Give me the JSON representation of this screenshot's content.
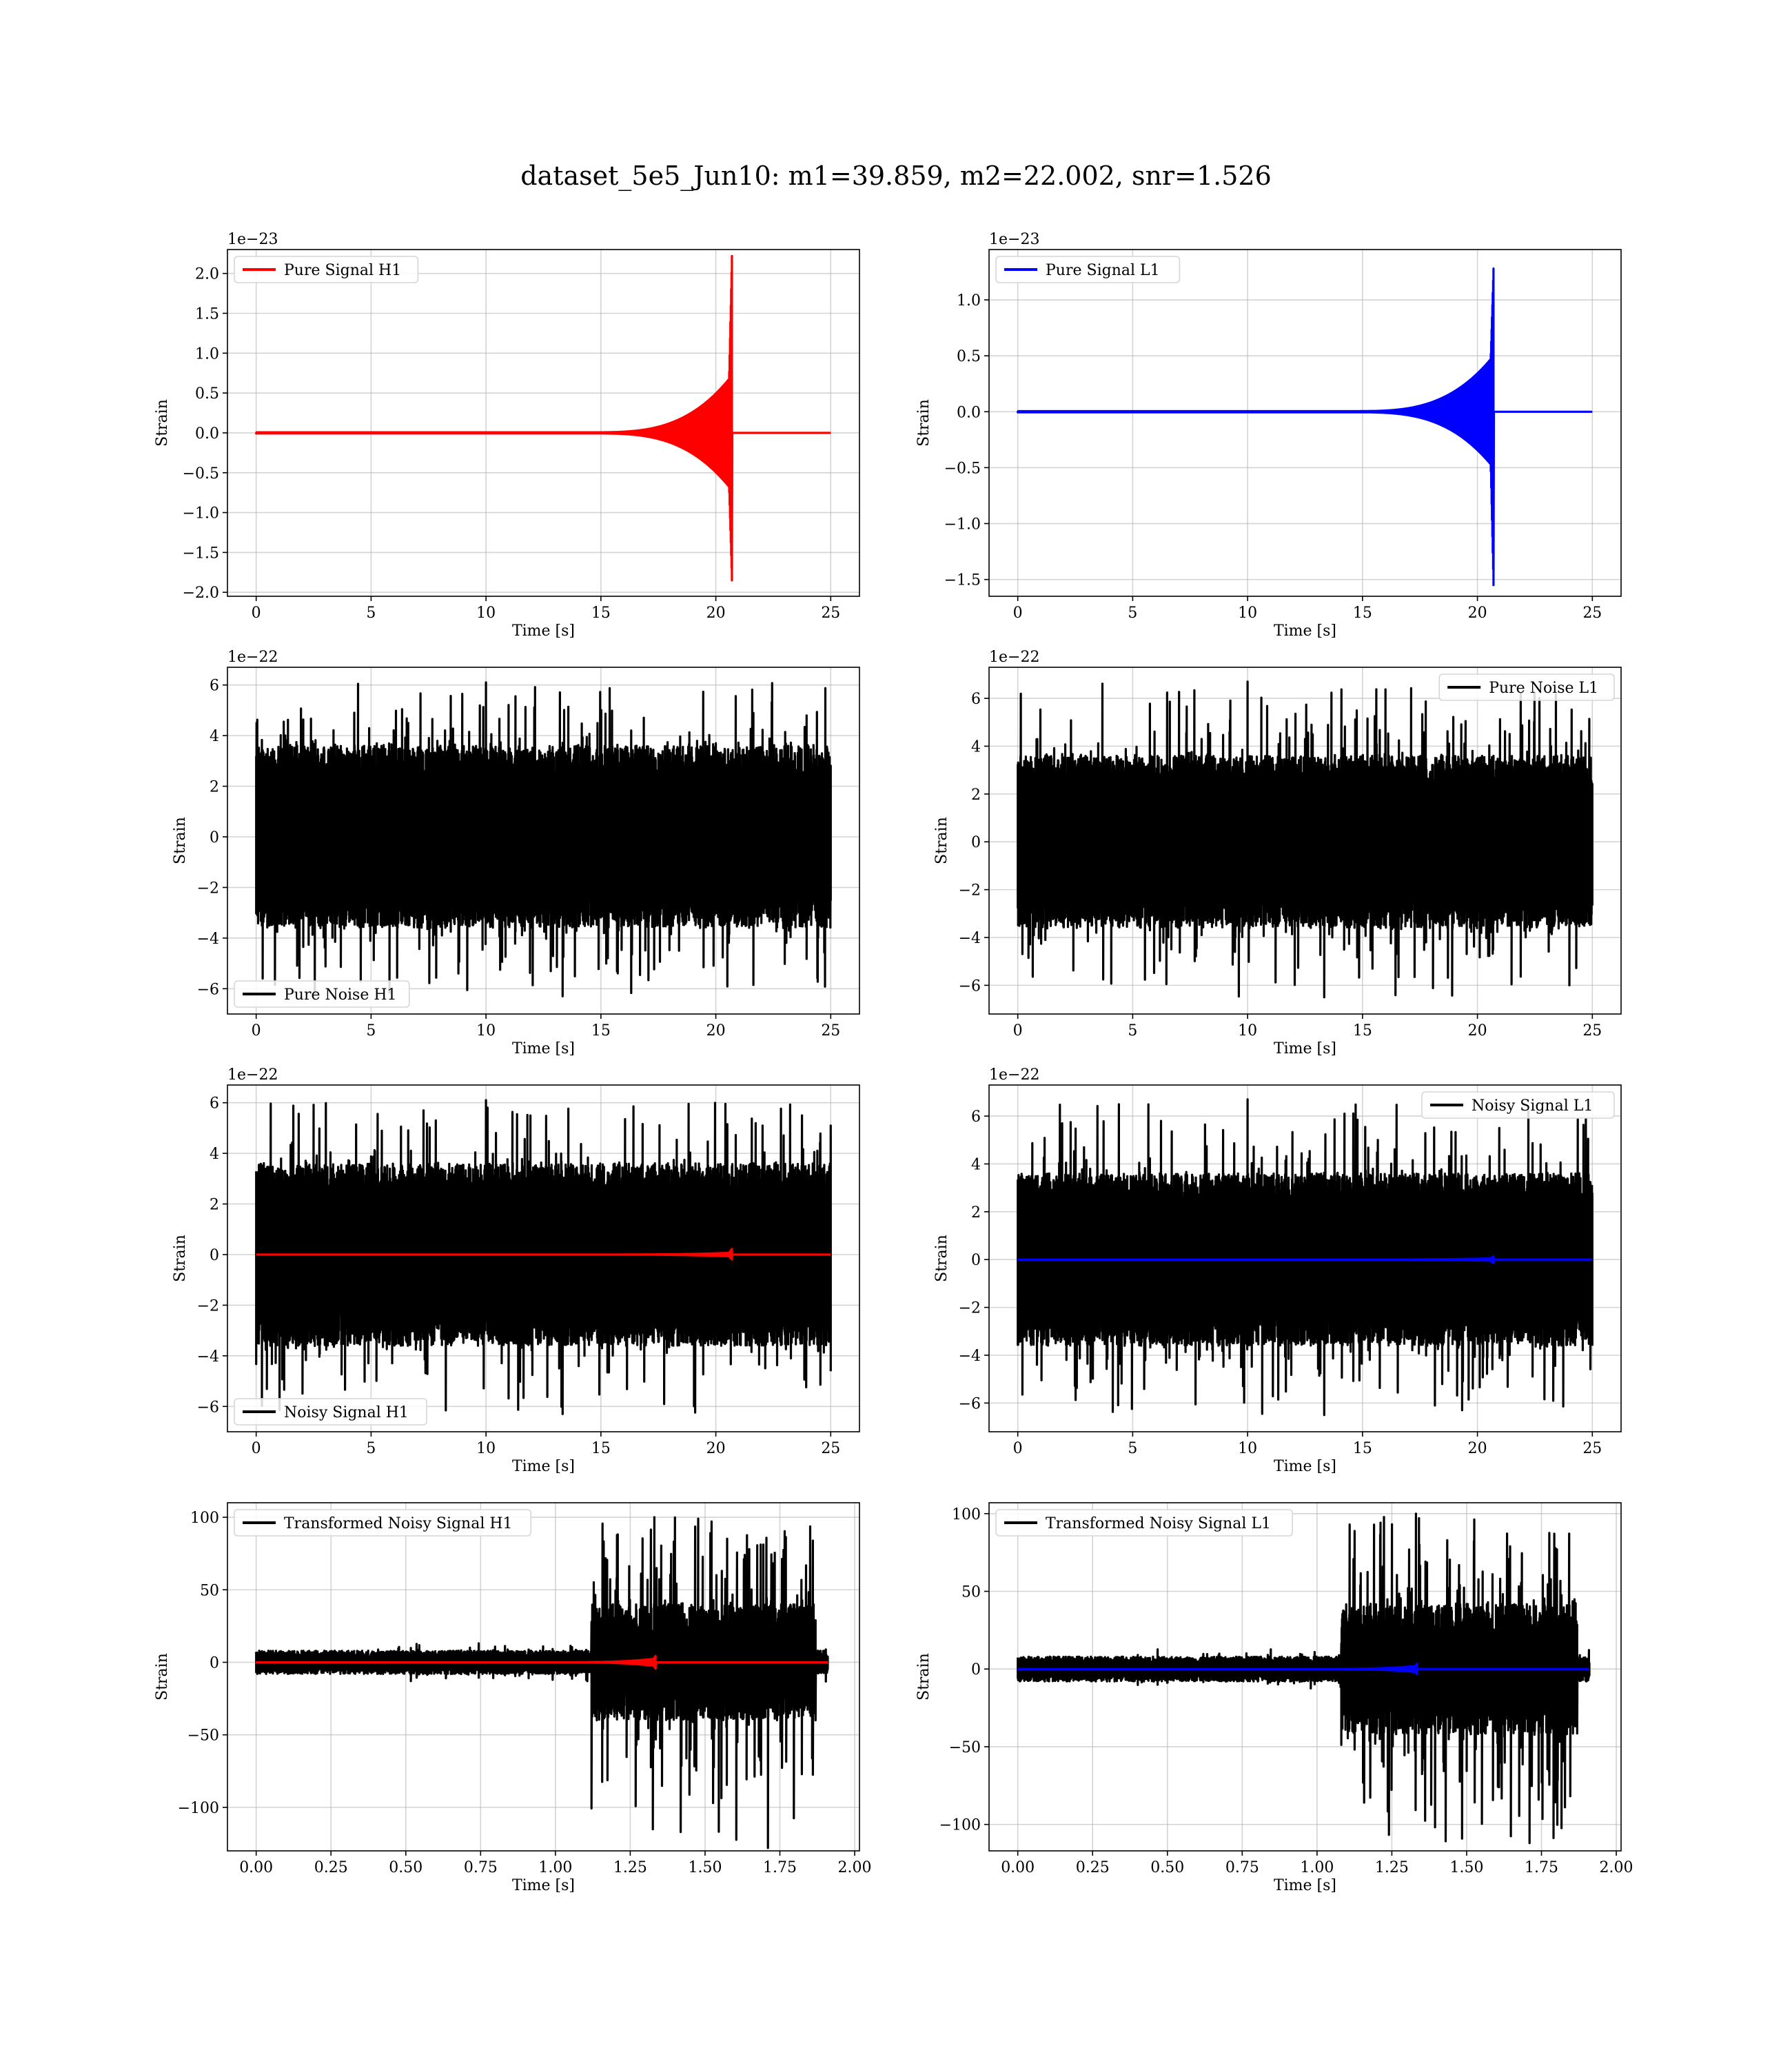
{
  "figure": {
    "title": "dataset_5e5_Jun10: m1=39.859, m2=22.002, snr=1.526"
  },
  "chart_data": [
    {
      "type": "line",
      "panel": "pure-signal-h1",
      "xlabel": "Time [s]",
      "ylabel": "Strain",
      "offset_text": "1e−23",
      "xlim": [
        -1.25,
        26.25
      ],
      "ylim": [
        -2.05,
        2.3
      ],
      "xticks": [
        0,
        5,
        10,
        15,
        20,
        25
      ],
      "xtick_labels": [
        "0",
        "5",
        "10",
        "15",
        "20",
        "25"
      ],
      "yticks": [
        -2.0,
        -1.5,
        -1.0,
        -0.5,
        0.0,
        0.5,
        1.0,
        1.5,
        2.0
      ],
      "ytick_labels": [
        "−2.0",
        "−1.5",
        "−1.0",
        "−0.5",
        "0.0",
        "0.5",
        "1.0",
        "1.5",
        "2.0"
      ],
      "legend": "top-left",
      "grid": true,
      "series": [
        {
          "name": "Pure Signal H1",
          "color": "#ff0000",
          "kind": "chirp",
          "t_start": 0,
          "t_end": 25,
          "t_merger": 20.7,
          "amp_pos": 2.22,
          "amp_neg": -1.85,
          "amp_pre": 0.72,
          "t_grow": 14.5
        }
      ]
    },
    {
      "type": "line",
      "panel": "pure-signal-l1",
      "xlabel": "Time [s]",
      "ylabel": "Strain",
      "offset_text": "1e−23",
      "xlim": [
        -1.25,
        26.25
      ],
      "ylim": [
        -1.65,
        1.45
      ],
      "xticks": [
        0,
        5,
        10,
        15,
        20,
        25
      ],
      "xtick_labels": [
        "0",
        "5",
        "10",
        "15",
        "20",
        "25"
      ],
      "yticks": [
        -1.5,
        -1.0,
        -0.5,
        0.0,
        0.5,
        1.0
      ],
      "ytick_labels": [
        "−1.5",
        "−1.0",
        "−0.5",
        "0.0",
        "0.5",
        "1.0"
      ],
      "legend": "top-left",
      "grid": true,
      "series": [
        {
          "name": "Pure Signal L1",
          "color": "#0000ff",
          "kind": "chirp",
          "t_start": 0,
          "t_end": 25,
          "t_merger": 20.7,
          "amp_pos": 1.28,
          "amp_neg": -1.55,
          "amp_pre": 0.5,
          "t_grow": 14.5
        }
      ]
    },
    {
      "type": "line",
      "panel": "pure-noise-h1",
      "xlabel": "Time [s]",
      "ylabel": "Strain",
      "offset_text": "1e−22",
      "xlim": [
        -1.25,
        26.25
      ],
      "ylim": [
        -7.0,
        6.7
      ],
      "xticks": [
        0,
        5,
        10,
        15,
        20,
        25
      ],
      "xtick_labels": [
        "0",
        "5",
        "10",
        "15",
        "20",
        "25"
      ],
      "yticks": [
        -6,
        -4,
        -2,
        0,
        2,
        4,
        6
      ],
      "ytick_labels": [
        "−6",
        "−4",
        "−2",
        "0",
        "2",
        "4",
        "6"
      ],
      "legend": "bottom-left",
      "grid": true,
      "series": [
        {
          "name": "Pure Noise H1",
          "color": "#000000",
          "kind": "noise",
          "t_start": 0,
          "t_end": 25,
          "band": 3.6,
          "peak_pos": 6.1,
          "peak_neg": -6.3
        }
      ]
    },
    {
      "type": "line",
      "panel": "pure-noise-l1",
      "xlabel": "Time [s]",
      "ylabel": "Strain",
      "offset_text": "1e−22",
      "xlim": [
        -1.25,
        26.25
      ],
      "ylim": [
        -7.2,
        7.3
      ],
      "xticks": [
        0,
        5,
        10,
        15,
        20,
        25
      ],
      "xtick_labels": [
        "0",
        "5",
        "10",
        "15",
        "20",
        "25"
      ],
      "yticks": [
        -6,
        -4,
        -2,
        0,
        2,
        4,
        6
      ],
      "ytick_labels": [
        "−6",
        "−4",
        "−2",
        "0",
        "2",
        "4",
        "6"
      ],
      "legend": "top-right",
      "grid": true,
      "series": [
        {
          "name": "Pure Noise L1",
          "color": "#000000",
          "kind": "noise",
          "t_start": 0,
          "t_end": 25,
          "band": 3.6,
          "peak_pos": 6.7,
          "peak_neg": -6.5
        }
      ]
    },
    {
      "type": "line",
      "panel": "noisy-signal-h1",
      "xlabel": "Time [s]",
      "ylabel": "Strain",
      "offset_text": "1e−22",
      "xlim": [
        -1.25,
        26.25
      ],
      "ylim": [
        -7.0,
        6.7
      ],
      "xticks": [
        0,
        5,
        10,
        15,
        20,
        25
      ],
      "xtick_labels": [
        "0",
        "5",
        "10",
        "15",
        "20",
        "25"
      ],
      "yticks": [
        -6,
        -4,
        -2,
        0,
        2,
        4,
        6
      ],
      "ytick_labels": [
        "−6",
        "−4",
        "−2",
        "0",
        "2",
        "4",
        "6"
      ],
      "legend": "bottom-left",
      "grid": true,
      "series": [
        {
          "name": "Noisy Signal H1",
          "color": "#000000",
          "kind": "noise",
          "t_start": 0,
          "t_end": 25,
          "band": 3.6,
          "peak_pos": 6.1,
          "peak_neg": -6.3
        },
        {
          "name": "",
          "color": "#ff0000",
          "kind": "chirp",
          "t_start": 0,
          "t_end": 25,
          "t_merger": 20.7,
          "amp_pos": 0.22,
          "amp_neg": -0.19,
          "amp_pre": 0.07,
          "t_grow": 14.5
        }
      ]
    },
    {
      "type": "line",
      "panel": "noisy-signal-l1",
      "xlabel": "Time [s]",
      "ylabel": "Strain",
      "offset_text": "1e−22",
      "xlim": [
        -1.25,
        26.25
      ],
      "ylim": [
        -7.2,
        7.3
      ],
      "xticks": [
        0,
        5,
        10,
        15,
        20,
        25
      ],
      "xtick_labels": [
        "0",
        "5",
        "10",
        "15",
        "20",
        "25"
      ],
      "yticks": [
        -6,
        -4,
        -2,
        0,
        2,
        4,
        6
      ],
      "ytick_labels": [
        "−6",
        "−4",
        "−2",
        "0",
        "2",
        "4",
        "6"
      ],
      "legend": "top-right",
      "grid": true,
      "series": [
        {
          "name": "Noisy Signal L1",
          "color": "#000000",
          "kind": "noise",
          "t_start": 0,
          "t_end": 25,
          "band": 3.6,
          "peak_pos": 6.7,
          "peak_neg": -6.5
        },
        {
          "name": "",
          "color": "#0000ff",
          "kind": "chirp",
          "t_start": 0,
          "t_end": 25,
          "t_merger": 20.7,
          "amp_pos": 0.13,
          "amp_neg": -0.15,
          "amp_pre": 0.05,
          "t_grow": 14.5
        }
      ]
    },
    {
      "type": "line",
      "panel": "transformed-noisy-signal-h1",
      "xlabel": "Time [s]",
      "ylabel": "Strain",
      "offset_text": "",
      "xlim": [
        -0.096,
        2.016
      ],
      "ylim": [
        -130,
        110
      ],
      "xticks": [
        0.0,
        0.25,
        0.5,
        0.75,
        1.0,
        1.25,
        1.5,
        1.75,
        2.0
      ],
      "xtick_labels": [
        "0.00",
        "0.25",
        "0.50",
        "0.75",
        "1.00",
        "1.25",
        "1.50",
        "1.75",
        "2.00"
      ],
      "yticks": [
        -100,
        -50,
        0,
        50,
        100
      ],
      "ytick_labels": [
        "−100",
        "−50",
        "0",
        "50",
        "100"
      ],
      "legend": "top-left",
      "grid": true,
      "series": [
        {
          "name": "Transformed Noisy Signal H1",
          "color": "#000000",
          "kind": "burst",
          "t_start": 0,
          "t_end": 1.91,
          "t_on": 1.12,
          "t_off": 1.87,
          "low": 8,
          "high": 40,
          "peak_pos": 100,
          "peak_neg": -128
        },
        {
          "name": "",
          "color": "#ff0000",
          "kind": "chirp",
          "t_start": 0,
          "t_end": 1.91,
          "t_merger": 1.335,
          "amp_pos": 4.5,
          "amp_neg": -4.5,
          "amp_pre": 2.5,
          "t_grow": 1.0
        }
      ]
    },
    {
      "type": "line",
      "panel": "transformed-noisy-signal-l1",
      "xlabel": "Time [s]",
      "ylabel": "Strain",
      "offset_text": "",
      "xlim": [
        -0.096,
        2.016
      ],
      "ylim": [
        -117,
        107
      ],
      "xticks": [
        0.0,
        0.25,
        0.5,
        0.75,
        1.0,
        1.25,
        1.5,
        1.75,
        2.0
      ],
      "xtick_labels": [
        "0.00",
        "0.25",
        "0.50",
        "0.75",
        "1.00",
        "1.25",
        "1.50",
        "1.75",
        "2.00"
      ],
      "yticks": [
        -100,
        -50,
        0,
        50,
        100
      ],
      "ytick_labels": [
        "−100",
        "−50",
        "0",
        "50",
        "100"
      ],
      "legend": "top-left",
      "grid": true,
      "series": [
        {
          "name": "Transformed Noisy Signal L1",
          "color": "#000000",
          "kind": "burst",
          "t_start": 0,
          "t_end": 1.91,
          "t_on": 1.08,
          "t_off": 1.87,
          "low": 8,
          "high": 42,
          "peak_pos": 100,
          "peak_neg": -112
        },
        {
          "name": "",
          "color": "#0000ff",
          "kind": "chirp",
          "t_start": 0,
          "t_end": 1.91,
          "t_merger": 1.335,
          "amp_pos": 3.5,
          "amp_neg": -3.5,
          "amp_pre": 2,
          "t_grow": 1.0
        }
      ]
    }
  ]
}
